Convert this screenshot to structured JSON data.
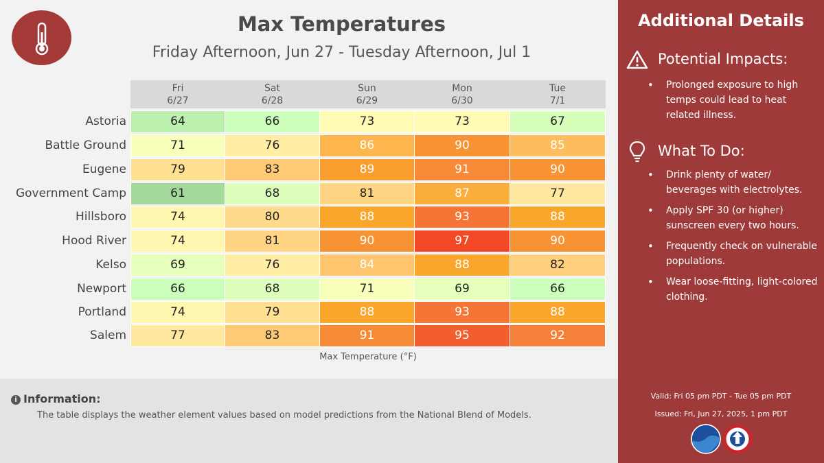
{
  "header": {
    "title": "Max Temperatures",
    "subtitle": "Friday Afternoon, Jun 27 - Tuesday Afternoon, Jul 1",
    "badge_icon": "thermometer-icon"
  },
  "chart_data": {
    "type": "heatmap",
    "title": "Max Temperatures",
    "subtitle": "Friday Afternoon, Jun 27 - Tuesday Afternoon, Jul 1",
    "columns": [
      {
        "day": "Fri",
        "date": "6/27"
      },
      {
        "day": "Sat",
        "date": "6/28"
      },
      {
        "day": "Sun",
        "date": "6/29"
      },
      {
        "day": "Mon",
        "date": "6/30"
      },
      {
        "day": "Tue",
        "date": "7/1"
      }
    ],
    "rows": [
      {
        "location": "Astoria",
        "values": [
          64,
          66,
          73,
          73,
          67
        ]
      },
      {
        "location": "Battle Ground",
        "values": [
          71,
          76,
          86,
          90,
          85
        ]
      },
      {
        "location": "Eugene",
        "values": [
          79,
          83,
          89,
          91,
          90
        ]
      },
      {
        "location": "Government Camp",
        "values": [
          61,
          68,
          81,
          87,
          77
        ]
      },
      {
        "location": "Hillsboro",
        "values": [
          74,
          80,
          88,
          93,
          88
        ]
      },
      {
        "location": "Hood River",
        "values": [
          74,
          81,
          90,
          97,
          90
        ]
      },
      {
        "location": "Kelso",
        "values": [
          69,
          76,
          84,
          88,
          82
        ]
      },
      {
        "location": "Newport",
        "values": [
          66,
          68,
          71,
          69,
          66
        ]
      },
      {
        "location": "Portland",
        "values": [
          74,
          79,
          88,
          93,
          88
        ]
      },
      {
        "location": "Salem",
        "values": [
          77,
          83,
          91,
          95,
          92
        ]
      }
    ],
    "legend_label": "Max Temperature (°F)"
  },
  "info": {
    "heading": "Information:",
    "text": "The table displays the weather element values based on model predictions from the National Blend of Models."
  },
  "sidebar": {
    "title": "Additional Details",
    "impacts": {
      "heading": "Potential Impacts:",
      "icon": "warning-icon",
      "items": [
        "Prolonged exposure to high temps could lead to heat related illness."
      ]
    },
    "todo": {
      "heading": "What To Do:",
      "icon": "lightbulb-icon",
      "items": [
        "Drink plenty of water/ beverages with electrolytes.",
        "Apply SPF 30 (or higher) sunscreen every two hours.",
        "Frequently check on vulnerable populations.",
        "Wear loose-fitting, light-colored clothing."
      ]
    },
    "valid": "Valid: Fri 05 pm PDT - Tue 05 pm PDT",
    "issued": "Issued: Fri, Jun 27, 2025, 1 pm PDT",
    "logos": [
      "noaa-logo",
      "nws-logo"
    ]
  },
  "colors": {
    "sidebar": "#9e3a3a",
    "header_cell": "#d9d9d9",
    "background": "#f2f2f2",
    "info_background": "#e3e3e3"
  }
}
